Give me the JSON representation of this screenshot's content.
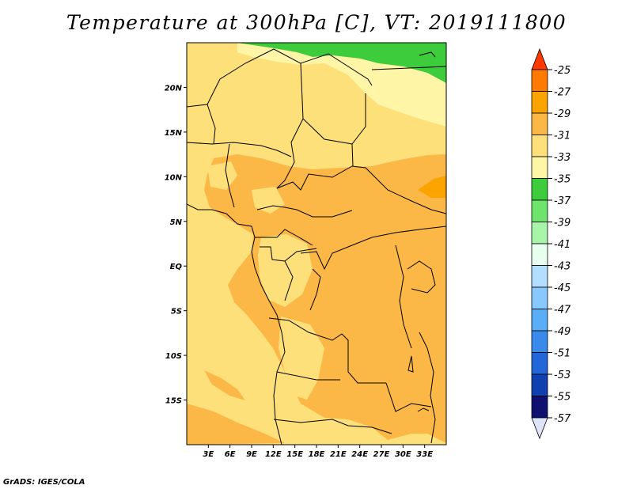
{
  "title": "Temperature at 300hPa [C], VT: 2019111800",
  "credit": "GrADS: IGES/COLA",
  "map": {
    "lon_range": [
      0,
      36
    ],
    "lat_range": [
      -20,
      25
    ],
    "lon_ticks": [
      "3E",
      "6E",
      "9E",
      "12E",
      "15E",
      "18E",
      "21E",
      "24E",
      "27E",
      "30E",
      "33E"
    ],
    "lat_ticks": [
      "20N",
      "15N",
      "10N",
      "5N",
      "EQ",
      "5S",
      "10S",
      "15S"
    ]
  },
  "colorbar": {
    "labels": [
      "-25",
      "-27",
      "-29",
      "-31",
      "-33",
      "-35",
      "-37",
      "-39",
      "-41",
      "-43",
      "-45",
      "-47",
      "-49",
      "-51",
      "-53",
      "-55",
      "-57"
    ],
    "colors": [
      "#ff3a00",
      "#ff7a00",
      "#fba400",
      "#fcb846",
      "#fde07a",
      "#fef5a6",
      "#3ccc3c",
      "#6ee46e",
      "#a8f4a8",
      "#e8fff0",
      "#b4deff",
      "#88c8ff",
      "#5aaef8",
      "#3a8aec",
      "#2266d8",
      "#1040b0",
      "#101070",
      "#dde4f8"
    ]
  }
}
